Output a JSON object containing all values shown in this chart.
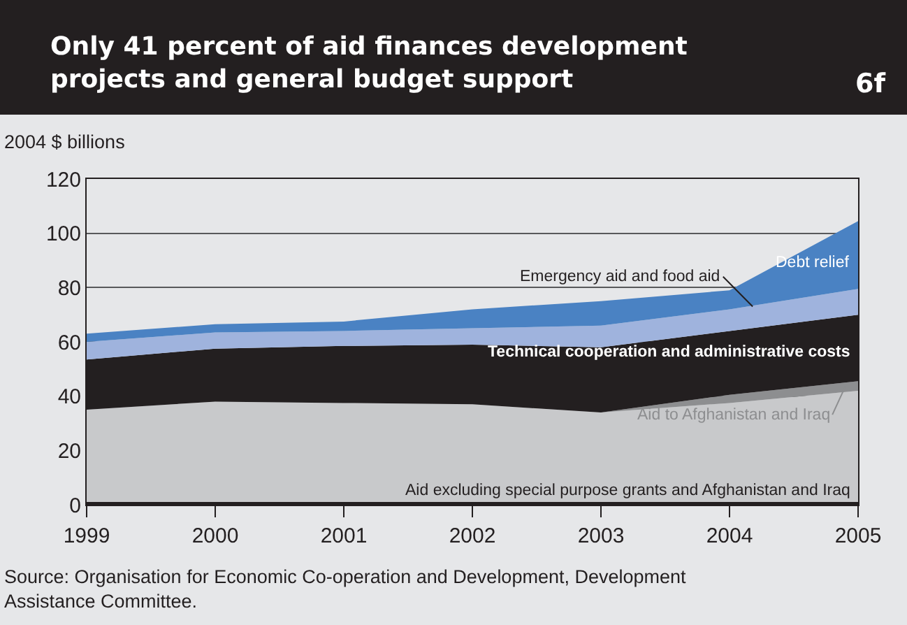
{
  "chart_data": {
    "type": "area",
    "stacked": true,
    "title": "Only 41 percent of aid finances development projects and general budget support",
    "ylabel": "2004 $ billions",
    "x": [
      1999,
      2000,
      2001,
      2002,
      2003,
      2004,
      2005
    ],
    "series": [
      {
        "name": "Aid excluding special purpose grants and Afghanistan and Iraq",
        "color": "#c8c9cb",
        "values": [
          35,
          38,
          37.5,
          37,
          34,
          37.5,
          42
        ]
      },
      {
        "name": "Aid to Afghanistan and Iraq",
        "color": "#8d8e90",
        "values": [
          0,
          0,
          0,
          0,
          0,
          3,
          3.5
        ]
      },
      {
        "name": "Technical cooperation and administrative costs",
        "color": "#231f20",
        "values": [
          18.5,
          19.5,
          21,
          22,
          24,
          23.5,
          24.5
        ]
      },
      {
        "name": "Emergency aid and food aid",
        "color": "#9fb3dd",
        "values": [
          6.5,
          6,
          5.5,
          6,
          8,
          8,
          9.5
        ]
      },
      {
        "name": "Debt relief",
        "color": "#4a82c3",
        "values": [
          3,
          3,
          3.5,
          7,
          9,
          7,
          25
        ]
      }
    ],
    "xlim": [
      1999,
      2005
    ],
    "xticks": [
      1999,
      2000,
      2001,
      2002,
      2003,
      2004,
      2005
    ],
    "ylim": [
      0,
      120
    ],
    "yticks": [
      0,
      20,
      40,
      60,
      80,
      100,
      120
    ],
    "grid": "y",
    "legend": false,
    "annotations": [
      "6f",
      "Source: Organisation for Economic Co-operation and Development, Development Assistance Committee."
    ]
  }
}
